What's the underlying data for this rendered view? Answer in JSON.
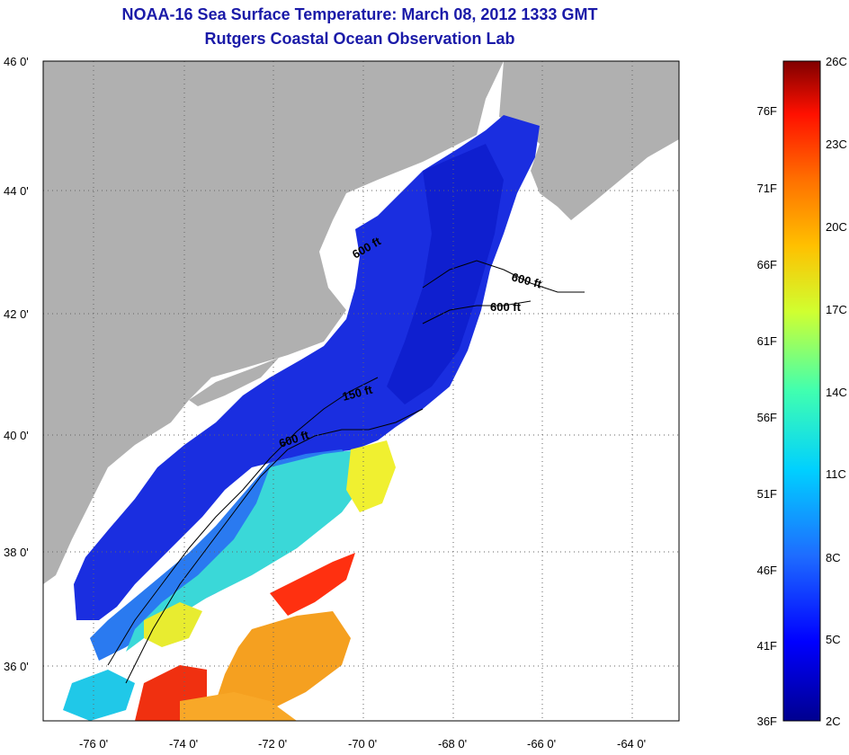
{
  "title": {
    "line1": "NOAA-16 Sea Surface Temperature:  March 08, 2012 1333 GMT",
    "line2": "Rutgers Coastal Ocean Observation Lab"
  },
  "map": {
    "lat_labels": [
      "46 0'",
      "44 0'",
      "42 0'",
      "40 0'",
      "38 0'",
      "36 0'"
    ],
    "lon_labels": [
      "-76 0'",
      "-74 0'",
      "-72 0'",
      "-70 0'",
      "-68 0'",
      "-66 0'",
      "-64 0'"
    ],
    "contour_labels": [
      "600 ft",
      "600 ft",
      "150 ft",
      "600 ft",
      "600 ft"
    ],
    "colors": {
      "land": "#b0b0b0",
      "cloud": "#ffffff",
      "cold": "#1a2ee0",
      "warm": "#ff3010"
    }
  },
  "colorbar": {
    "fahrenheit": [
      "76F",
      "71F",
      "66F",
      "61F",
      "56F",
      "51F",
      "46F",
      "41F",
      "36F"
    ],
    "celsius": [
      "26C",
      "23C",
      "20C",
      "17C",
      "14C",
      "11C",
      "8C",
      "5C",
      "2C"
    ]
  }
}
